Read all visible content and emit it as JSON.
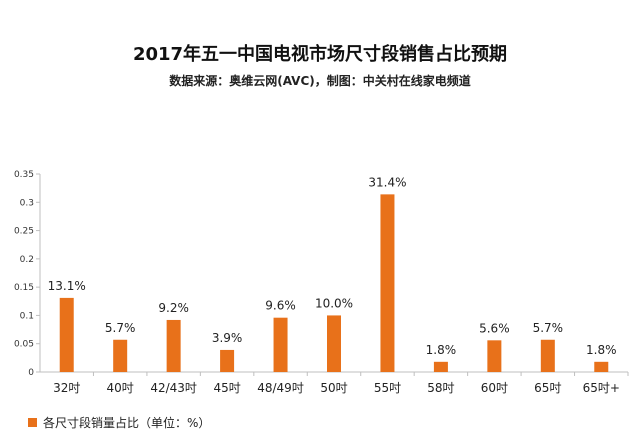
{
  "chart_data": {
    "type": "bar",
    "title": "2017年五一中国电视市场尺寸段销售占比预期",
    "subtitle": "数据来源：奥维云网(AVC)，制图：中关村在线家电频道",
    "categories": [
      "32吋",
      "40吋",
      "42/43吋",
      "45吋",
      "48/49吋",
      "50吋",
      "55吋",
      "58吋",
      "60吋",
      "65吋",
      "65吋+"
    ],
    "series": [
      {
        "name": "各尺寸段销量占比（单位：%）",
        "values": [
          0.131,
          0.057,
          0.092,
          0.039,
          0.096,
          0.1,
          0.314,
          0.018,
          0.056,
          0.057,
          0.018
        ],
        "data_labels": [
          "13.1%",
          "5.7%",
          "9.2%",
          "3.9%",
          "9.6%",
          "10.0%",
          "31.4%",
          "1.8%",
          "5.6%",
          "5.7%",
          "1.8%"
        ]
      }
    ],
    "ylim": [
      0,
      0.35
    ],
    "yticks": [
      "0",
      "0.05",
      "0.1",
      "0.15",
      "0.2",
      "0.25",
      "0.3",
      "0.35"
    ],
    "grid": false,
    "legend_position": "bottom-left",
    "colors": {
      "bar": "#e8711a",
      "axis": "#bfbfbf",
      "text": "#222222"
    }
  }
}
